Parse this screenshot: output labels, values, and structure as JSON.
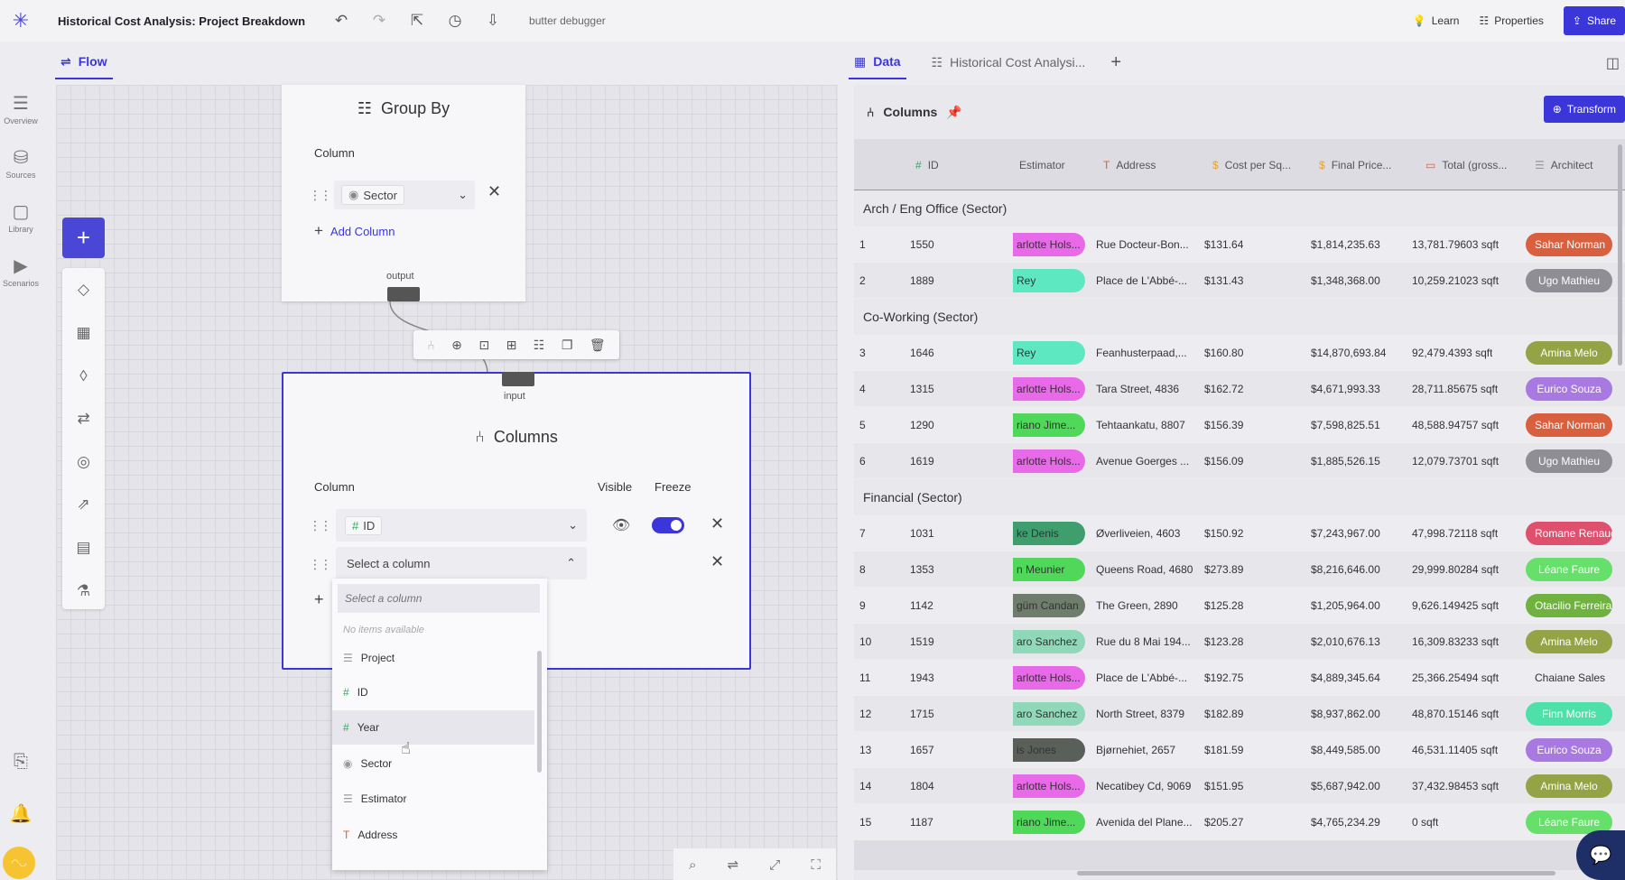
{
  "topbar": {
    "title": "Historical Cost Analysis: Project Breakdown",
    "debugger": "butter debugger",
    "learn": "Learn",
    "properties": "Properties",
    "share": "Share"
  },
  "nav": {
    "overview": "Overview",
    "sources": "Sources",
    "library": "Library",
    "scenarios": "Scenarios"
  },
  "flow_tab": "Flow",
  "groupby": {
    "title": "Group By",
    "column_label": "Column",
    "selected": "Sector",
    "add_column": "Add Column",
    "output": "output"
  },
  "columns_node": {
    "input": "input",
    "title": "Columns",
    "column_label": "Column",
    "visible_label": "Visible",
    "freeze_label": "Freeze",
    "row1_value": "ID",
    "row2_placeholder": "Select a column"
  },
  "dropdown": {
    "search_placeholder": "Select a column",
    "empty": "No items available",
    "items": [
      {
        "icon": "☰",
        "label": "Project"
      },
      {
        "icon": "#",
        "label": "ID"
      },
      {
        "icon": "#",
        "label": "Year"
      },
      {
        "icon": "◉",
        "label": "Sector"
      },
      {
        "icon": "☰",
        "label": "Estimator"
      },
      {
        "icon": "T",
        "label": "Address"
      }
    ]
  },
  "right_tabs": {
    "data": "Data",
    "analysis": "Historical Cost Analysi..."
  },
  "panel": {
    "title": "Columns",
    "transform": "Transform"
  },
  "grid": {
    "headers": [
      "ID",
      "Estimator",
      "Address",
      "Cost per Sq...",
      "Final Price...",
      "Total (gross...",
      "Architect"
    ],
    "groups": [
      {
        "label": "Arch / Eng Office  (Sector)",
        "rows": [
          {
            "n": "1",
            "id": "1550",
            "est": "arlotte Hols...",
            "est_color": "#e86ae8",
            "addr": "Rue Docteur-Bon...",
            "cost": "$131.64",
            "price": "$1,814,235.63",
            "total": "13,781.79603 sqft",
            "arch": "Sahar Norman",
            "arch_color": "#d9603e"
          },
          {
            "n": "2",
            "id": "1889",
            "est": "Rey",
            "est_color": "#5ee8c2",
            "addr": "Place de L'Abbé-...",
            "cost": "$131.43",
            "price": "$1,348,368.00",
            "total": "10,259.21023 sqft",
            "arch": "Ugo Mathieu",
            "arch_color": "#8e8e94"
          }
        ]
      },
      {
        "label": "Co-Working  (Sector)",
        "rows": [
          {
            "n": "3",
            "id": "1646",
            "est": "Rey",
            "est_color": "#5ee8c2",
            "addr": "Feanhusterpaad,...",
            "cost": "$160.80",
            "price": "$14,870,693.84",
            "total": "92,479.4393 sqft",
            "arch": "Amina Melo",
            "arch_color": "#93a346"
          },
          {
            "n": "4",
            "id": "1315",
            "est": "arlotte Hols...",
            "est_color": "#e86ae8",
            "addr": "Tara Street, 4836",
            "cost": "$162.72",
            "price": "$4,671,993.33",
            "total": "28,711.85675 sqft",
            "arch": "Eurico Souza",
            "arch_color": "#a879e0"
          },
          {
            "n": "5",
            "id": "1290",
            "est": "riano Jime...",
            "est_color": "#4fd85a",
            "addr": "Tehtaankatu, 8807",
            "cost": "$156.39",
            "price": "$7,598,825.51",
            "total": "48,588.94757 sqft",
            "arch": "Sahar Norman",
            "arch_color": "#d9603e"
          },
          {
            "n": "6",
            "id": "1619",
            "est": "arlotte Hols...",
            "est_color": "#e86ae8",
            "addr": "Avenue Goerges ...",
            "cost": "$156.09",
            "price": "$1,885,526.15",
            "total": "12,079.73701 sqft",
            "arch": "Ugo Mathieu",
            "arch_color": "#8e8e94"
          }
        ]
      },
      {
        "label": "Financial  (Sector)",
        "rows": [
          {
            "n": "7",
            "id": "1031",
            "est": "ke Denis",
            "est_color": "#3e9e6e",
            "addr": "Øverliveien, 4603",
            "cost": "$150.92",
            "price": "$7,243,967.00",
            "total": "47,998.72118 sqft",
            "arch": "Romane Renaud",
            "arch_color": "#df4f6e"
          },
          {
            "n": "8",
            "id": "1353",
            "est": "n Meunier",
            "est_color": "#4fd85a",
            "addr": "Queens Road, 4680",
            "cost": "$273.89",
            "price": "$8,216,646.00",
            "total": "29,999.80284 sqft",
            "arch": "Léane Faure",
            "arch_color": "#66e06a"
          },
          {
            "n": "9",
            "id": "1142",
            "est": "güm Candan",
            "est_color": "#6f7d6d",
            "addr": "The Green, 2890",
            "cost": "$125.28",
            "price": "$1,205,964.00",
            "total": "9,626.149425 sqft",
            "arch": "Otacilio Ferreira",
            "arch_color": "#6fb23f"
          },
          {
            "n": "10",
            "id": "1519",
            "est": "aro Sanchez",
            "est_color": "#8fd8b8",
            "addr": "Rue du 8 Mai 194...",
            "cost": "$123.28",
            "price": "$2,010,676.13",
            "total": "16,309.83233 sqft",
            "arch": "Amina Melo",
            "arch_color": "#93a346"
          },
          {
            "n": "11",
            "id": "1943",
            "est": "arlotte Hols...",
            "est_color": "#e86ae8",
            "addr": "Place de L'Abbé-...",
            "cost": "$192.75",
            "price": "$4,889,345.64",
            "total": "25,366.25494 sqft",
            "arch": "Chaiane Sales",
            "arch_color": ""
          },
          {
            "n": "12",
            "id": "1715",
            "est": "aro Sanchez",
            "est_color": "#8fd8b8",
            "addr": "North Street, 8379",
            "cost": "$182.89",
            "price": "$8,937,862.00",
            "total": "48,870.15146 sqft",
            "arch": "Finn Morris",
            "arch_color": "#4de0a8"
          },
          {
            "n": "13",
            "id": "1657",
            "est": "is Jones",
            "est_color": "#5a5f5a",
            "addr": "Bjørnehiet, 2657",
            "cost": "$181.59",
            "price": "$8,449,585.00",
            "total": "46,531.11405 sqft",
            "arch": "Eurico Souza",
            "arch_color": "#a879e0"
          },
          {
            "n": "14",
            "id": "1804",
            "est": "arlotte Hols...",
            "est_color": "#e86ae8",
            "addr": "Necatibey Cd, 9069",
            "cost": "$151.95",
            "price": "$5,687,942.00",
            "total": "37,432.98453 sqft",
            "arch": "Amina Melo",
            "arch_color": "#93a346"
          },
          {
            "n": "15",
            "id": "1187",
            "est": "riano Jime...",
            "est_color": "#4fd85a",
            "addr": "Avenida del Plane...",
            "cost": "$205.27",
            "price": "$4,765,234.29",
            "total": "0 sqft",
            "arch": "Léane Faure",
            "arch_color": "#66e06a"
          }
        ]
      }
    ]
  }
}
